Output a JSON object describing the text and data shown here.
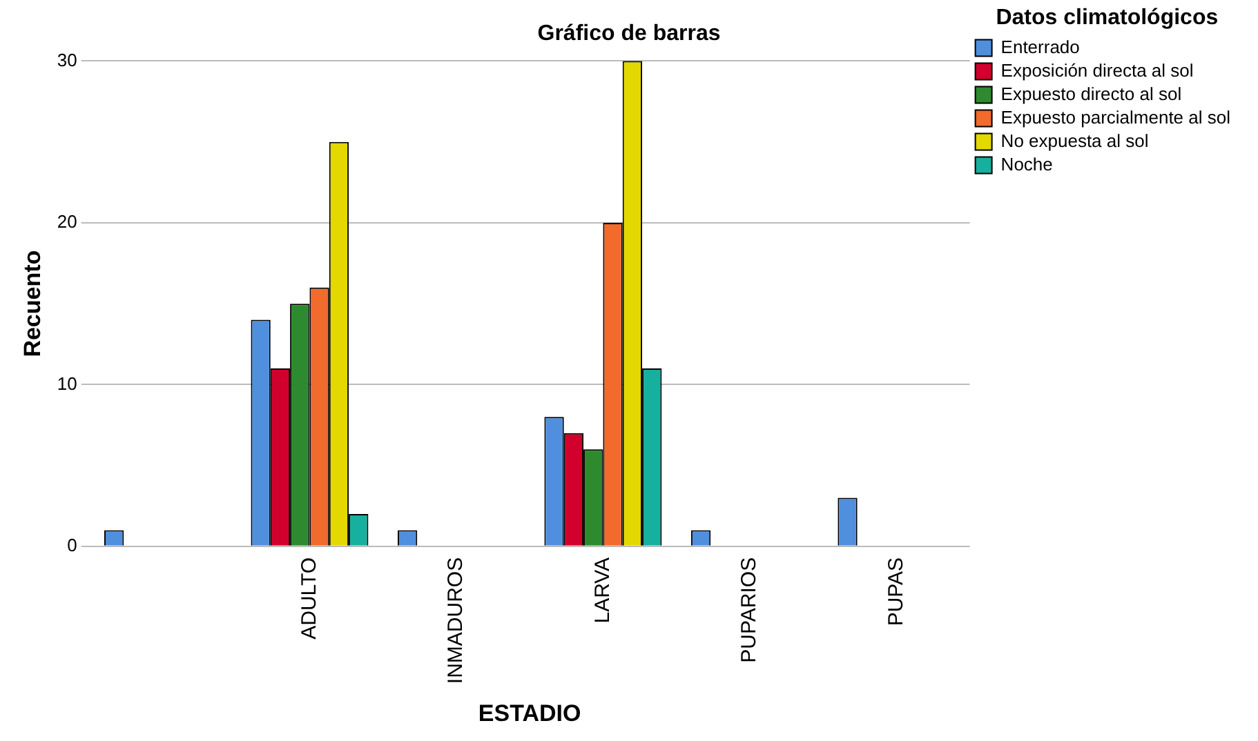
{
  "chart_data": {
    "type": "bar",
    "title": "Gráfico de barras",
    "xlabel": "ESTADIO",
    "ylabel": "Recuento",
    "legend_title": "Datos climatológicos",
    "categories": [
      null,
      "ADULTO",
      "INMADUROS",
      "LARVA",
      "PUPARIOS",
      "PUPAS"
    ],
    "series": [
      {
        "name": "Enterrado",
        "color": "#4f8fde",
        "values": [
          1,
          14,
          1,
          8,
          1,
          3
        ]
      },
      {
        "name": "Exposición directa al sol",
        "color": "#d2002c",
        "values": [
          null,
          11,
          null,
          7,
          null,
          null
        ]
      },
      {
        "name": "Expuesto directo al sol",
        "color": "#2e8a2e",
        "values": [
          null,
          15,
          null,
          6,
          null,
          null
        ]
      },
      {
        "name": "Expuesto parcialmente al sol",
        "color": "#f26a2c",
        "values": [
          null,
          16,
          null,
          20,
          null,
          null
        ]
      },
      {
        "name": "No expuesta al sol",
        "color": "#e3d800",
        "values": [
          null,
          25,
          null,
          30,
          null,
          null
        ]
      },
      {
        "name": "Noche",
        "color": "#16b09e",
        "values": [
          null,
          2,
          null,
          11,
          null,
          null
        ]
      }
    ],
    "ylim": [
      0,
      30
    ],
    "yticks": [
      0,
      10,
      20,
      30
    ],
    "grid": "y",
    "legend": "top right"
  }
}
